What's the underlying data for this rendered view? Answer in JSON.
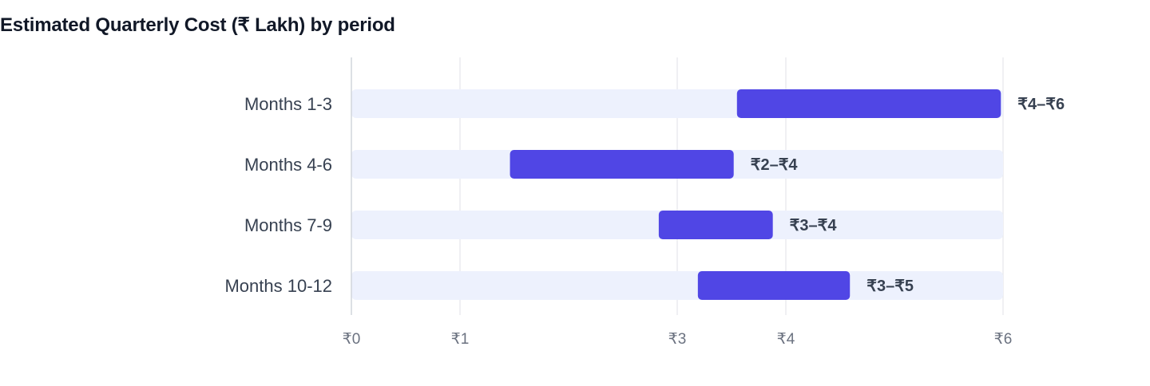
{
  "title": "Estimated Quarterly Cost (₹ Lakh) by period",
  "colors": {
    "track": "#edf1fd",
    "bar": "#5046e5",
    "grid": "#e5e7eb"
  },
  "chart_data": {
    "type": "bar",
    "orientation": "horizontal",
    "subtype": "range",
    "title": "Estimated Quarterly Cost (₹ Lakh) by period",
    "categories": [
      "Months 1-3",
      "Months 4-6",
      "Months 7-9",
      "Months 10-12"
    ],
    "ranges": [
      [
        3.55,
        5.98
      ],
      [
        1.46,
        3.52
      ],
      [
        2.83,
        3.88
      ],
      [
        3.19,
        4.59
      ]
    ],
    "data_labels": [
      "₹4–₹6",
      "₹2–₹4",
      "₹3–₹4",
      "₹3–₹5"
    ],
    "xlim": [
      0,
      6
    ],
    "x_ticks": [
      0,
      1,
      3,
      4,
      6
    ],
    "x_tick_labels": [
      "₹0",
      "₹1",
      "₹3",
      "₹4",
      "₹6"
    ],
    "grid": true,
    "legend": "none"
  }
}
